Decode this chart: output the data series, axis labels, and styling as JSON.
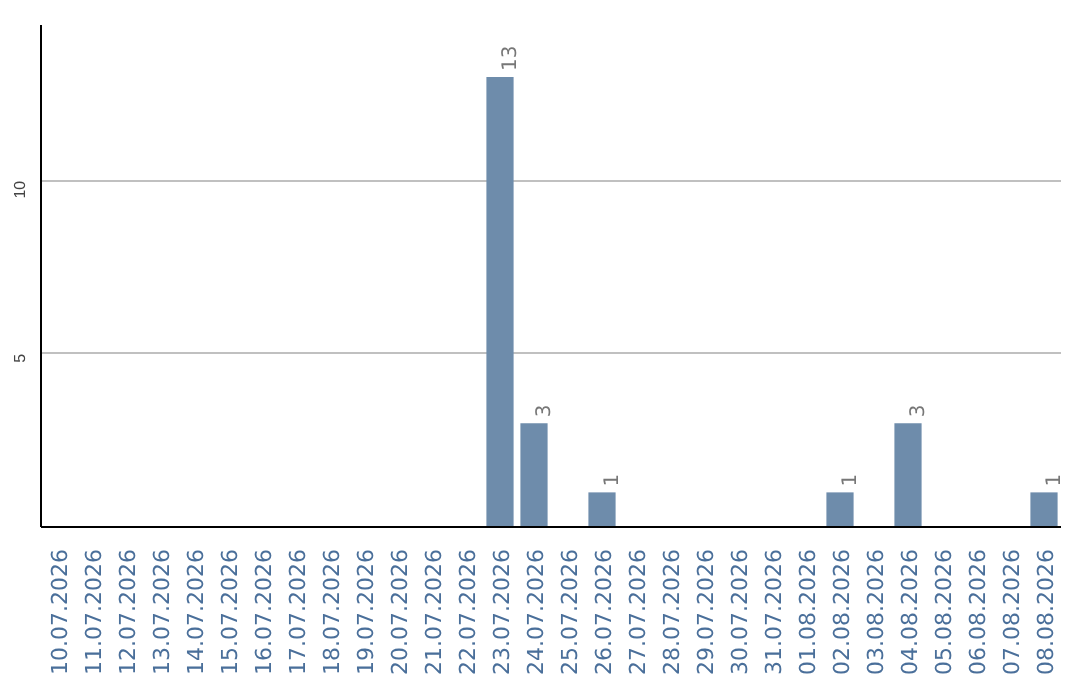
{
  "chart_data": {
    "type": "bar",
    "categories": [
      "10.07.2026",
      "11.07.2026",
      "12.07.2026",
      "13.07.2026",
      "14.07.2026",
      "15.07.2026",
      "16.07.2026",
      "17.07.2026",
      "18.07.2026",
      "19.07.2026",
      "20.07.2026",
      "21.07.2026",
      "22.07.2026",
      "23.07.2026",
      "24.07.2026",
      "25.07.2026",
      "26.07.2026",
      "27.07.2026",
      "28.07.2026",
      "29.07.2026",
      "30.07.2026",
      "31.07.2026",
      "01.08.2026",
      "02.08.2026",
      "03.08.2026",
      "04.08.2026",
      "05.08.2026",
      "06.08.2026",
      "07.08.2026",
      "08.08.2026"
    ],
    "values": [
      0,
      0,
      0,
      0,
      0,
      0,
      0,
      0,
      0,
      0,
      0,
      0,
      0,
      13,
      3,
      0,
      1,
      0,
      0,
      0,
      0,
      0,
      0,
      1,
      0,
      3,
      0,
      0,
      0,
      1
    ],
    "value_labels": [
      null,
      null,
      null,
      null,
      null,
      null,
      null,
      null,
      null,
      null,
      null,
      null,
      null,
      "13",
      "3",
      null,
      "1",
      null,
      null,
      null,
      null,
      null,
      null,
      "1",
      null,
      "3",
      null,
      null,
      null,
      "1"
    ],
    "color": "#6e8cab",
    "ylim": [
      0,
      14.5
    ],
    "yticks": [
      5,
      10
    ],
    "grid": "y"
  }
}
